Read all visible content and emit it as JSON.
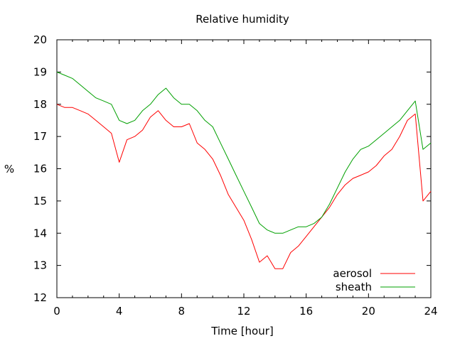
{
  "chart_data": {
    "type": "line",
    "title": "Relative humidity",
    "xlabel": "Time [hour]",
    "ylabel": "%",
    "xlim": [
      0,
      24
    ],
    "ylim": [
      12,
      20
    ],
    "x_ticks": [
      0,
      4,
      8,
      12,
      16,
      20,
      24
    ],
    "y_ticks": [
      12,
      13,
      14,
      15,
      16,
      17,
      18,
      19,
      20
    ],
    "grid": false,
    "legend_position": "bottom-right",
    "x": [
      0,
      0.5,
      1,
      1.5,
      2,
      2.5,
      3,
      3.5,
      4,
      4.5,
      5,
      5.5,
      6,
      6.5,
      7,
      7.5,
      8,
      8.5,
      9,
      9.5,
      10,
      10.5,
      11,
      11.5,
      12,
      12.5,
      13,
      13.5,
      14,
      14.5,
      15,
      15.5,
      16,
      16.5,
      17,
      17.5,
      18,
      18.5,
      19,
      19.5,
      20,
      20.5,
      21,
      21.5,
      22,
      22.5,
      23,
      23.5,
      24
    ],
    "series": [
      {
        "name": "aerosol",
        "color": "#ff0000",
        "values": [
          18.0,
          17.9,
          17.9,
          17.8,
          17.7,
          17.5,
          17.3,
          17.1,
          16.2,
          16.9,
          17.0,
          17.2,
          17.6,
          17.8,
          17.5,
          17.3,
          17.3,
          17.4,
          16.8,
          16.6,
          16.3,
          15.8,
          15.2,
          14.8,
          14.4,
          13.8,
          13.1,
          13.3,
          12.9,
          12.9,
          13.4,
          13.6,
          13.9,
          14.2,
          14.5,
          14.8,
          15.2,
          15.5,
          15.7,
          15.8,
          15.9,
          16.1,
          16.4,
          16.6,
          17.0,
          17.5,
          17.7,
          15.0,
          15.3
        ]
      },
      {
        "name": "sheath",
        "color": "#00a000",
        "values": [
          19.0,
          18.9,
          18.8,
          18.6,
          18.4,
          18.2,
          18.1,
          18.0,
          17.5,
          17.4,
          17.5,
          17.8,
          18.0,
          18.3,
          18.5,
          18.2,
          18.0,
          18.0,
          17.8,
          17.5,
          17.3,
          16.8,
          16.3,
          15.8,
          15.3,
          14.8,
          14.3,
          14.1,
          14.0,
          14.0,
          14.1,
          14.2,
          14.2,
          14.3,
          14.5,
          14.9,
          15.4,
          15.9,
          16.3,
          16.6,
          16.7,
          16.9,
          17.1,
          17.3,
          17.5,
          17.8,
          18.1,
          16.6,
          16.8
        ]
      }
    ]
  }
}
